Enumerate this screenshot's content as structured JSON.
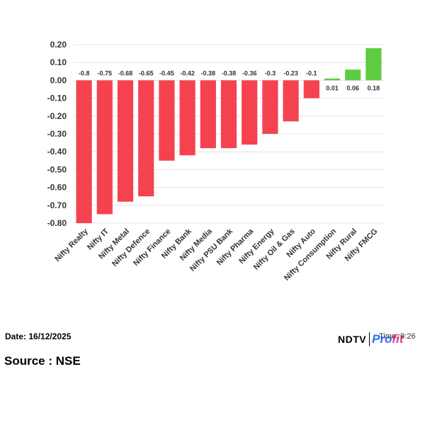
{
  "chart_data": {
    "type": "bar",
    "categories": [
      "Nifty Realty",
      "Nifty IT",
      "Nifty Metal",
      "Nifty Defence",
      "Nifty Finance",
      "Nifty Bank",
      "Nifty Media",
      "Nifty PSU Bank",
      "Nifty Pharma",
      "Nifty Energy",
      "Nifty Oil & Gas",
      "Nifty Auto",
      "Nifty Consumption",
      "Nifty Rural",
      "Nifty FMCG"
    ],
    "values": [
      -0.8,
      -0.75,
      -0.68,
      -0.65,
      -0.45,
      -0.42,
      -0.38,
      -0.38,
      -0.36,
      -0.3,
      -0.23,
      -0.1,
      0.01,
      0.06,
      0.18
    ],
    "data_labels": [
      "-0.8",
      "-0.75",
      "-0.68",
      "-0.65",
      "-0.45",
      "-0.42",
      "-0.38",
      "-0.38",
      "-0.36",
      "-0.3",
      "-0.23",
      "-0.1",
      "0.01",
      "0.06",
      "0.18"
    ],
    "yticks": [
      "0.20",
      "0.10",
      "0.00",
      "-0.10",
      "-0.20",
      "-0.30",
      "-0.40",
      "-0.50",
      "-0.60",
      "-0.70",
      "-0.80"
    ],
    "ylim": [
      -0.8,
      0.2
    ],
    "grid": true,
    "colors": {
      "negative": "#f5424f",
      "positive": "#5ecc41"
    }
  },
  "footer": {
    "date": "Date: 16/12/2025",
    "source": "Source : NSE",
    "time": "Time: 9:26",
    "brand": {
      "ndtv": "NDTV",
      "profit_a": "Pro",
      "profit_b": "fit"
    }
  }
}
